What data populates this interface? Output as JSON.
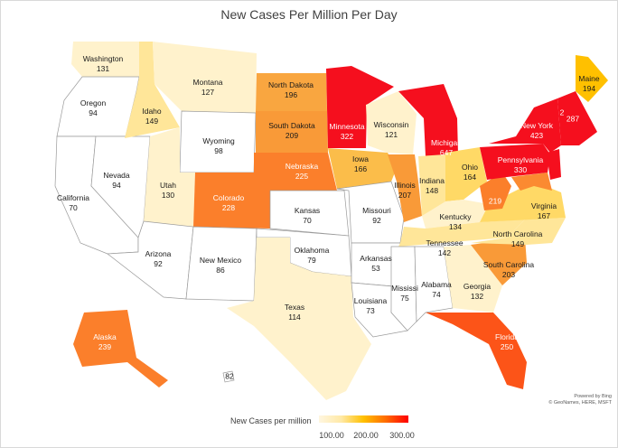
{
  "title": "New Cases Per Million Per Day",
  "credit": {
    "line1": "Powered by Bing",
    "line2": "© GeoNames, HERE, MSFT"
  },
  "legend": {
    "title": "New Cases per million",
    "ticks": [
      "100.00",
      "200.00",
      "300.00"
    ]
  },
  "states": [
    {
      "key": "wa",
      "name": "Washington",
      "value": "131"
    },
    {
      "key": "or",
      "name": "Oregon",
      "value": "94"
    },
    {
      "key": "ca",
      "name": "California",
      "value": "70"
    },
    {
      "key": "nv",
      "name": "Nevada",
      "value": "94"
    },
    {
      "key": "id",
      "name": "Idaho",
      "value": "149"
    },
    {
      "key": "mt",
      "name": "Montana",
      "value": "127"
    },
    {
      "key": "wy",
      "name": "Wyoming",
      "value": "98"
    },
    {
      "key": "ut",
      "name": "Utah",
      "value": "130"
    },
    {
      "key": "az",
      "name": "Arizona",
      "value": "92"
    },
    {
      "key": "co",
      "name": "Colorado",
      "value": "228"
    },
    {
      "key": "nm",
      "name": "New Mexico",
      "value": "86"
    },
    {
      "key": "nd",
      "name": "North Dakota",
      "value": "196"
    },
    {
      "key": "sd",
      "name": "South Dakota",
      "value": "209"
    },
    {
      "key": "ne",
      "name": "Nebraska",
      "value": "225"
    },
    {
      "key": "ks",
      "name": "Kansas",
      "value": "70"
    },
    {
      "key": "ok",
      "name": "Oklahoma",
      "value": "79"
    },
    {
      "key": "tx",
      "name": "Texas",
      "value": "114"
    },
    {
      "key": "mn",
      "name": "Minnesota",
      "value": "322"
    },
    {
      "key": "ia",
      "name": "Iowa",
      "value": "166"
    },
    {
      "key": "mo",
      "name": "Missouri",
      "value": "92"
    },
    {
      "key": "ar",
      "name": "Arkansas",
      "value": "53"
    },
    {
      "key": "la",
      "name": "Louisiana",
      "value": "73"
    },
    {
      "key": "wi",
      "name": "Wisconsin",
      "value": "121"
    },
    {
      "key": "il",
      "name": "Illinois",
      "value": "207"
    },
    {
      "key": "mi",
      "name": "Michigan",
      "value": "647"
    },
    {
      "key": "in",
      "name": "Indiana",
      "value": "148"
    },
    {
      "key": "oh",
      "name": "Ohio",
      "value": "164"
    },
    {
      "key": "ky",
      "name": "Kentucky",
      "value": "134"
    },
    {
      "key": "tn",
      "name": "Tennessee",
      "value": "142"
    },
    {
      "key": "ms",
      "name": "Mississi",
      "value": "75"
    },
    {
      "key": "al",
      "name": "Alabama",
      "value": "74"
    },
    {
      "key": "ga",
      "name": "Georgia",
      "value": "132"
    },
    {
      "key": "fl",
      "name": "Florida",
      "value": "250"
    },
    {
      "key": "sc",
      "name": "South Carolina",
      "value": "203"
    },
    {
      "key": "nc",
      "name": "North Carolina",
      "value": "149"
    },
    {
      "key": "va",
      "name": "Virginia",
      "value": "167"
    },
    {
      "key": "wv",
      "name": "",
      "value": "219"
    },
    {
      "key": "pa",
      "name": "Pennsylvania",
      "value": "330"
    },
    {
      "key": "ny",
      "name": "New York",
      "value": "423"
    },
    {
      "key": "ne_small",
      "name": "",
      "value": "2"
    },
    {
      "key": "ct_area",
      "name": "",
      "value": "287"
    },
    {
      "key": "me",
      "name": "Maine",
      "value": "194"
    },
    {
      "key": "ak",
      "name": "Alaska",
      "value": "239"
    },
    {
      "key": "hi",
      "name": "",
      "value": "82"
    }
  ]
}
